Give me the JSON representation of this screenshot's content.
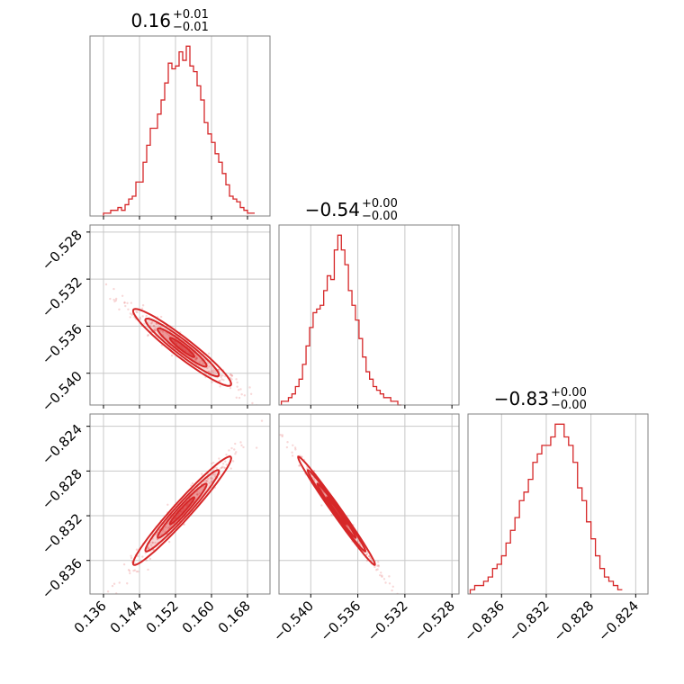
{
  "chart_data": {
    "type": "corner",
    "color": "#d62728",
    "parameters": [
      {
        "title": {
          "value": "0.16",
          "plus": "+0.01",
          "minus": "−0.01"
        },
        "range": [
          0.133,
          0.173
        ],
        "ticks": [
          0.136,
          0.144,
          0.152,
          0.16,
          0.168
        ],
        "tick_labels": [
          "0.136",
          "0.144",
          "0.152",
          "0.160",
          "0.168"
        ],
        "hist_bin_start": 0.136,
        "hist_bin_width": 0.0008,
        "hist_counts": [
          1,
          1,
          2,
          2,
          3,
          2,
          4,
          6,
          7,
          12,
          12,
          19,
          25,
          31,
          31,
          36,
          41,
          47,
          54,
          52,
          53,
          58,
          55,
          60,
          53,
          51,
          46,
          41,
          33,
          29,
          26,
          22,
          19,
          15,
          11,
          7,
          6,
          5,
          3,
          2,
          1,
          1
        ]
      },
      {
        "title": {
          "value": "−0.54",
          "plus": "+0.00",
          "minus": "−0.00"
        },
        "range": [
          -0.5427,
          -0.5274
        ],
        "ticks": [
          -0.54,
          -0.536,
          -0.532,
          -0.528
        ],
        "tick_labels": [
          "−0.540",
          "−0.536",
          "−0.532",
          "−0.528"
        ],
        "hist_bin_start": -0.5425,
        "hist_bin_width": 0.0003,
        "hist_counts": [
          1,
          1,
          2,
          3,
          5,
          7,
          11,
          16,
          21,
          25,
          26,
          27,
          31,
          35,
          34,
          42,
          46,
          42,
          38,
          31,
          27,
          23,
          18,
          13,
          9,
          7,
          5,
          4,
          3,
          2,
          2,
          1,
          1,
          0
        ]
      },
      {
        "title": {
          "value": "−0.83",
          "plus": "+0.00",
          "minus": "−0.00"
        },
        "range": [
          -0.839,
          -0.8229
        ],
        "ticks": [
          -0.836,
          -0.832,
          -0.828,
          -0.824
        ],
        "tick_labels": [
          "−0.836",
          "−0.832",
          "−0.828",
          "−0.824"
        ],
        "hist_bin_start": -0.8388,
        "hist_bin_width": 0.0004,
        "hist_counts": [
          1,
          2,
          2,
          3,
          4,
          6,
          7,
          9,
          12,
          15,
          18,
          22,
          24,
          27,
          31,
          33,
          35,
          35,
          37,
          40,
          40,
          37,
          35,
          31,
          25,
          22,
          17,
          13,
          9,
          6,
          4,
          3,
          2,
          1
        ]
      }
    ],
    "pairs": [
      {
        "x_param": 0,
        "y_param": 1,
        "correlation": -0.95
      },
      {
        "x_param": 0,
        "y_param": 2,
        "correlation": 0.97
      },
      {
        "x_param": 1,
        "y_param": 2,
        "correlation": -0.99
      }
    ],
    "grid": true
  }
}
